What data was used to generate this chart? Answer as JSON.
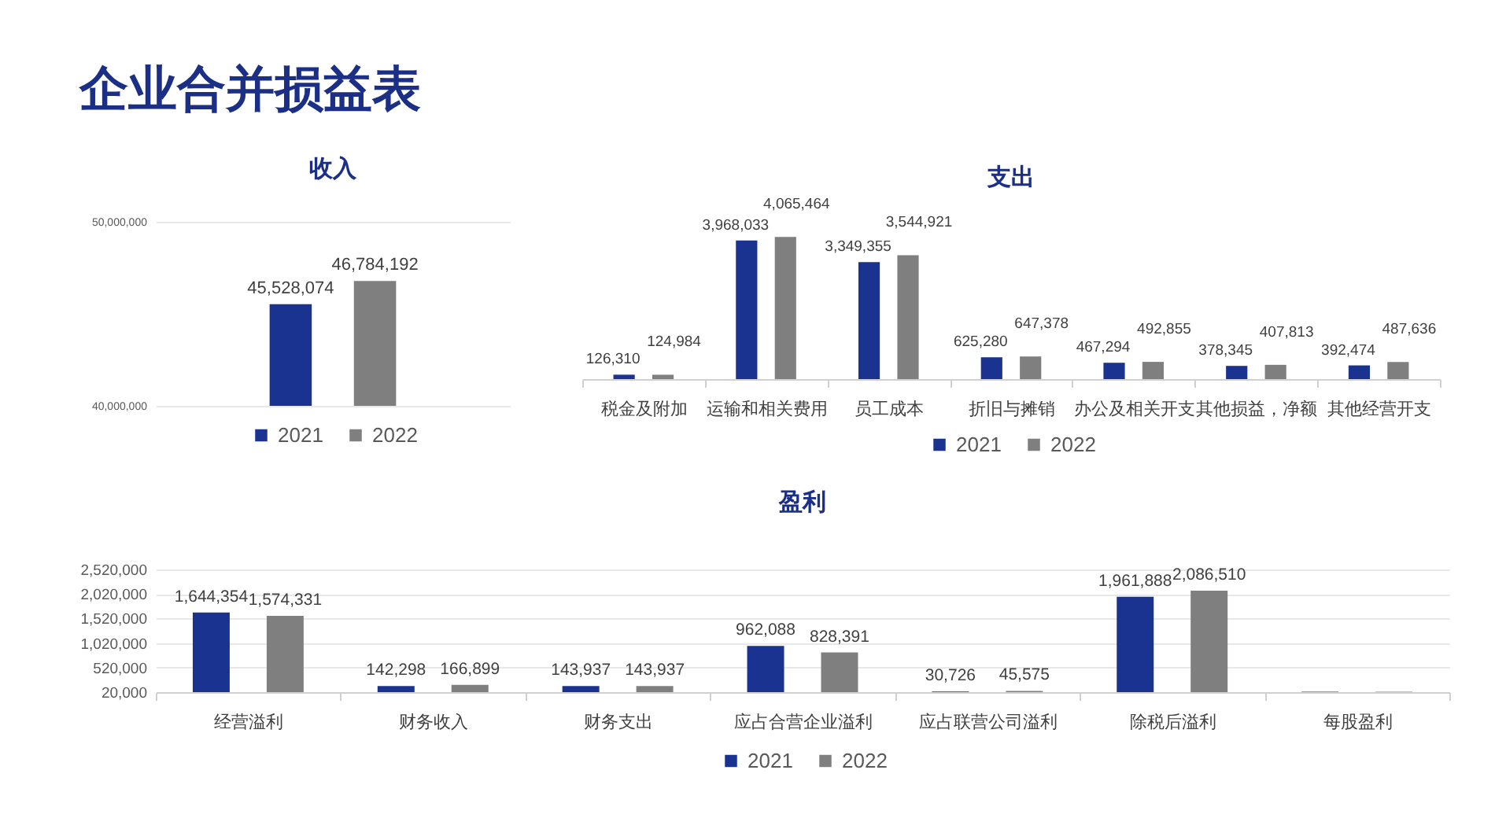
{
  "chart_data": [
    {
      "type": "other",
      "title": "企业合并损益表"
    },
    {
      "type": "bar",
      "title": "收入",
      "categories": [
        null
      ],
      "series": [
        {
          "name": "2021",
          "color": "#1b3390",
          "values": [
            45528074
          ],
          "value_labels": [
            "45,528,074"
          ]
        },
        {
          "name": "2022",
          "color": "#7f7f7f",
          "values": [
            46784192
          ],
          "value_labels": [
            "46,784,192"
          ]
        }
      ],
      "ylim": [
        40000000,
        50000000
      ],
      "yticks": [
        {
          "value": 40000000,
          "label": "40,000,000"
        },
        {
          "value": 50000000,
          "label": "50,000,000"
        }
      ],
      "grid": "y",
      "legend": "bottom",
      "tick_labels": "y"
    },
    {
      "type": "bar",
      "title": "支出",
      "categories": [
        "税金及附加",
        "运输和相关费用",
        "员工成本",
        "折旧与摊销",
        "办公及相关开支",
        "其他损益，净额",
        "其他经营开支"
      ],
      "series": [
        {
          "name": "2021",
          "color": "#1b3390",
          "values": [
            126310,
            3968033,
            3349355,
            625280,
            467294,
            378345,
            392474
          ],
          "value_labels": [
            "126,310",
            "3,968,033",
            "3,349,355",
            "625,280",
            "467,294",
            "378,345",
            "392,474"
          ]
        },
        {
          "name": "2022",
          "color": "#7f7f7f",
          "values": [
            124984,
            4065464,
            3544921,
            647378,
            492855,
            407813,
            487636
          ],
          "value_labels": [
            "124,984",
            "4,065,464",
            "3,544,921",
            "647,378",
            "492,855",
            "407,813",
            "487,636"
          ]
        }
      ],
      "legend": "bottom",
      "tick_labels": "x"
    },
    {
      "type": "bar",
      "title": "盈利",
      "categories": [
        "经营溢利",
        "财务收入",
        "财务支出",
        "应占合营企业溢利",
        "应占联营公司溢利",
        "除税后溢利",
        "每股盈利"
      ],
      "series": [
        {
          "name": "2021",
          "color": "#1b3390",
          "values": [
            1644354,
            142298,
            143937,
            962088,
            30726,
            1961888,
            30000
          ],
          "value_labels": [
            "1,644,354",
            "142,298",
            "143,937",
            "962,088",
            "30,726",
            "1,961,888",
            null
          ]
        },
        {
          "name": "2022",
          "color": "#7f7f7f",
          "values": [
            1574331,
            166899,
            143937,
            828391,
            45575,
            2086510,
            30000
          ],
          "value_labels": [
            "1,574,331",
            "166,899",
            "143,937",
            "828,391",
            "45,575",
            "2,086,510",
            null
          ]
        }
      ],
      "ylim": [
        20000,
        2520000
      ],
      "yticks": [
        {
          "value": 20000,
          "label": "20,000"
        },
        {
          "value": 520000,
          "label": "520,000"
        },
        {
          "value": 1020000,
          "label": "1,020,000"
        },
        {
          "value": 1520000,
          "label": "1,520,000"
        },
        {
          "value": 2020000,
          "label": "2,020,000"
        },
        {
          "value": 2520000,
          "label": "2,520,000"
        }
      ],
      "grid": "y",
      "legend": "bottom"
    }
  ]
}
